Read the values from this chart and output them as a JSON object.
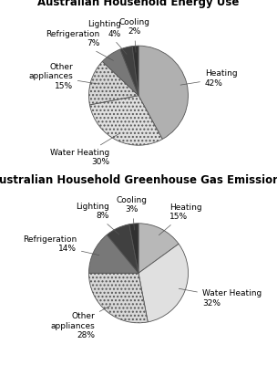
{
  "chart1": {
    "title": "Australian Household Energy Use",
    "labels": [
      "Heating",
      "Water Heating",
      "Other\nappliances",
      "Refrigeration",
      "Lighting",
      "Cooling"
    ],
    "values": [
      42,
      30,
      15,
      7,
      4,
      2
    ],
    "colors": [
      "#b0b0b0",
      "#e0e0e0",
      "#d8d8d8",
      "#787878",
      "#404040",
      "#303030"
    ],
    "hatches": [
      "",
      ".",
      ".",
      "",
      "",
      ""
    ],
    "startangle": 90
  },
  "chart2": {
    "title": "Australian Household Greenhouse Gas Emissions",
    "labels": [
      "Heating",
      "Water Heating",
      "Other\nappliances",
      "Refrigeration",
      "Lighting",
      "Cooling"
    ],
    "values": [
      15,
      32,
      28,
      14,
      8,
      3
    ],
    "colors": [
      "#b8b8b8",
      "#e0e0e0",
      "#d8d8d8",
      "#787878",
      "#404040",
      "#303030"
    ],
    "hatches": [
      "",
      "",
      ".",
      "",
      "",
      ""
    ],
    "startangle": 90
  },
  "bg_color": "#ffffff",
  "label_fontsize": 6.5,
  "title_fontsize": 8.5
}
